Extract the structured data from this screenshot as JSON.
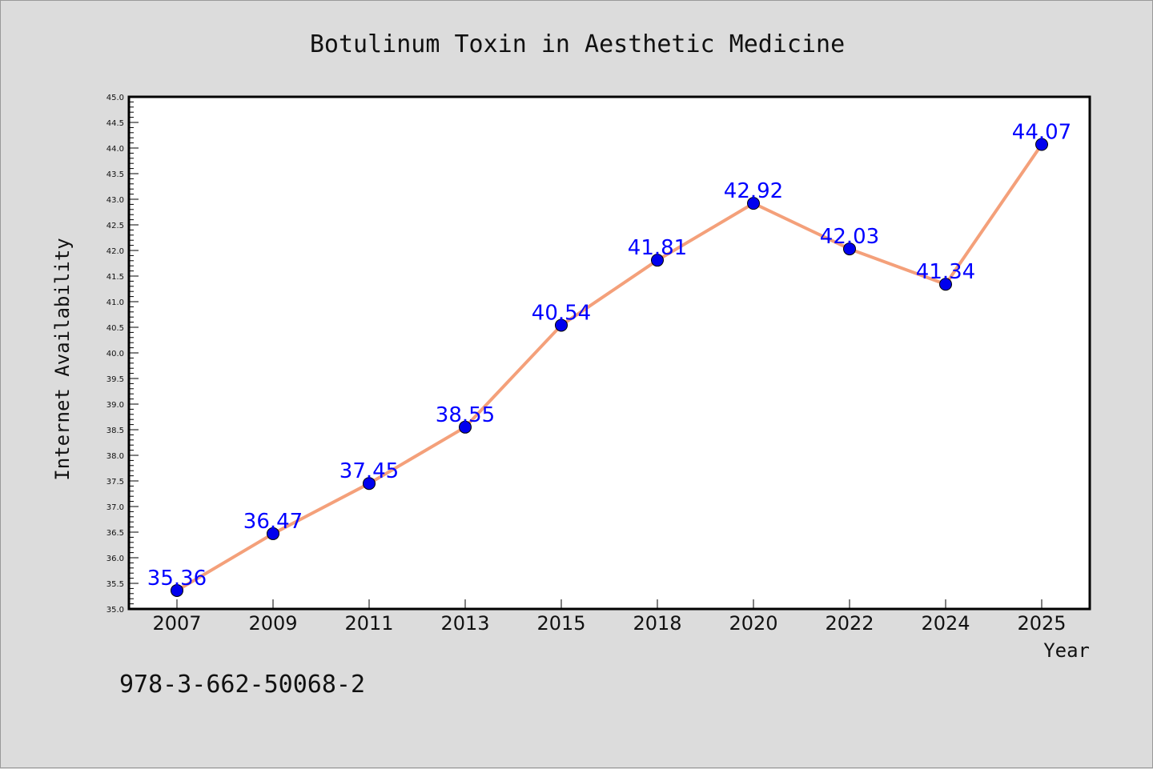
{
  "chart_data": {
    "type": "line",
    "title": "Botulinum Toxin in Aesthetic Medicine",
    "xlabel": "Year",
    "ylabel": "Internet Availability",
    "categories": [
      "2007",
      "2009",
      "2011",
      "2013",
      "2015",
      "2018",
      "2020",
      "2022",
      "2024",
      "2025"
    ],
    "series": [
      {
        "values": [
          35.36,
          36.47,
          37.45,
          38.55,
          40.54,
          41.81,
          42.92,
          42.03,
          41.34,
          44.07
        ],
        "line_color": "#f4a07a",
        "marker_color": "#0000ee"
      }
    ],
    "data_labels": [
      "35.36",
      "36.47",
      "37.45",
      "38.55",
      "40.54",
      "41.81",
      "42.92",
      "42.03",
      "41.34",
      "44.07"
    ],
    "ylim": [
      35.0,
      45.0
    ],
    "y_ticks": [
      "35.0",
      "35.5",
      "36.0",
      "36.5",
      "37.0",
      "37.5",
      "38.0",
      "38.5",
      "39.0",
      "39.5",
      "40.0",
      "40.5",
      "41.0",
      "41.5",
      "42.0",
      "42.5",
      "43.0",
      "43.5",
      "44.0",
      "44.5",
      "45.0"
    ],
    "grid": false,
    "legend": "none",
    "data_label_color": "#0000ff"
  },
  "footer": {
    "isbn": "978-3-662-50068-2"
  }
}
